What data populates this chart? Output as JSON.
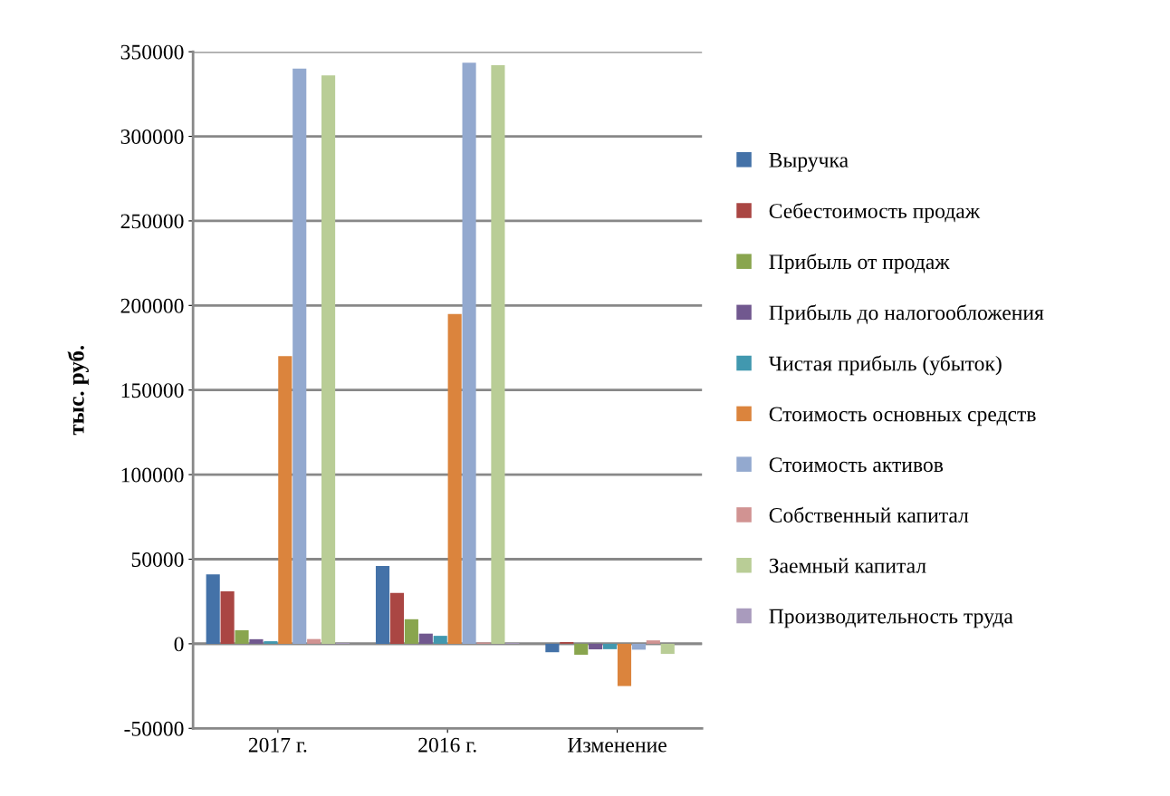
{
  "chart_data": {
    "type": "bar",
    "ylabel": "тыс. руб.",
    "categories": [
      "2017 г.",
      "2016 г.",
      "Изменение"
    ],
    "series": [
      {
        "name": "Выручка",
        "color": "#4472a8",
        "values": [
          41000,
          46000,
          -5000
        ]
      },
      {
        "name": "Себестоимость продаж",
        "color": "#aa4643",
        "values": [
          31000,
          30000,
          1000
        ]
      },
      {
        "name": "Прибыль от продаж",
        "color": "#89a54e",
        "values": [
          8000,
          14500,
          -6500
        ]
      },
      {
        "name": "Прибыль до налогообложения",
        "color": "#71588f",
        "values": [
          2700,
          6000,
          -3300
        ]
      },
      {
        "name": "Чистая прибыль (убыток)",
        "color": "#4198af",
        "values": [
          1500,
          4700,
          -3200
        ]
      },
      {
        "name": "Стоимость основных средств",
        "color": "#db843d",
        "values": [
          170000,
          195000,
          -25000
        ]
      },
      {
        "name": "Стоимость активов",
        "color": "#93a9cf",
        "values": [
          340000,
          343500,
          -3500
        ]
      },
      {
        "name": "Собственный капитал",
        "color": "#d19392",
        "values": [
          2800,
          800,
          2000
        ]
      },
      {
        "name": "Заемный капитал",
        "color": "#b9cd96",
        "values": [
          336000,
          342000,
          -6000
        ]
      },
      {
        "name": "Производительность труда",
        "color": "#a99bbd",
        "values": [
          500,
          500,
          0
        ]
      }
    ],
    "ylim": [
      -50000,
      350000
    ],
    "yticks": [
      -50000,
      0,
      50000,
      100000,
      150000,
      200000,
      250000,
      300000,
      350000
    ],
    "grid": "y",
    "legend": "right"
  }
}
